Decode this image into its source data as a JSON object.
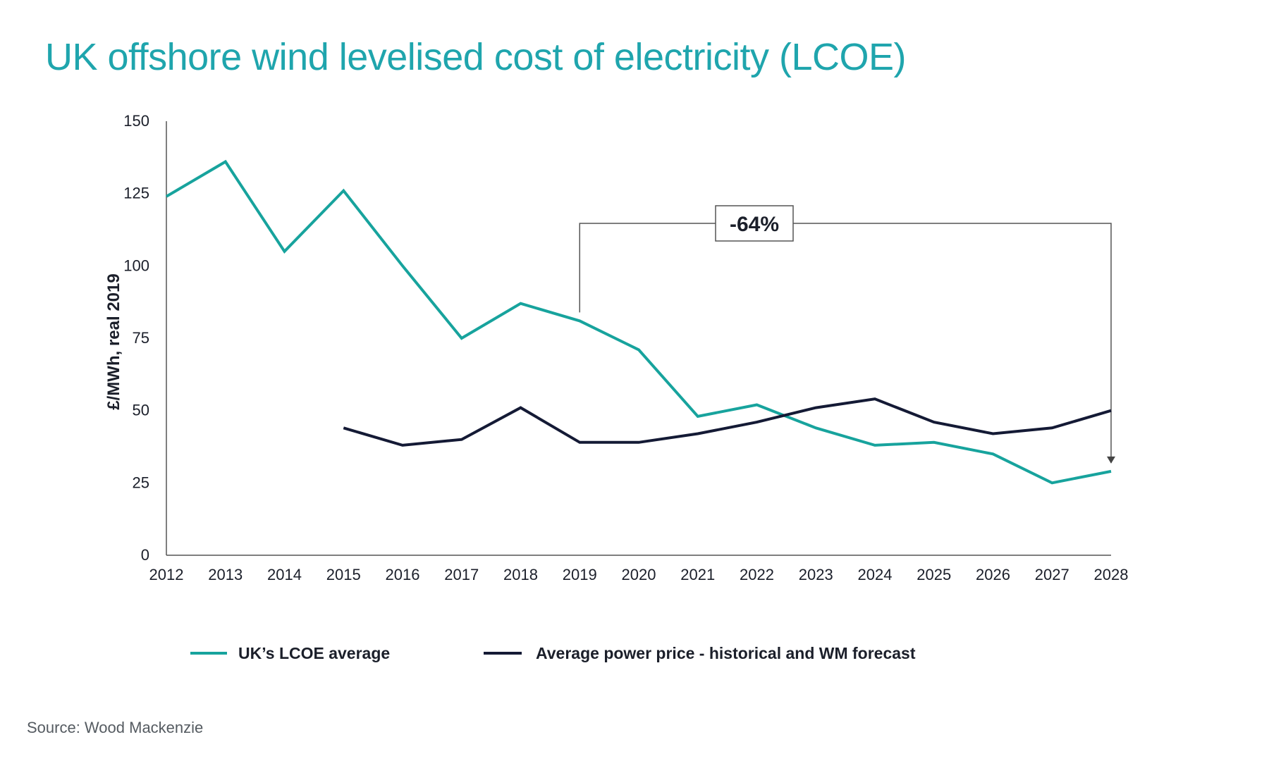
{
  "title": "UK offshore wind levelised cost of electricity (LCOE)",
  "source": "Source: Wood Mackenzie",
  "colors": {
    "title": "#1fa5ad",
    "lcoe": "#17a39d",
    "power": "#141a35",
    "axis": "#555555",
    "text": "#1b1f2a"
  },
  "chart_data": {
    "type": "line",
    "x": [
      "2012",
      "2013",
      "2014",
      "2015",
      "2016",
      "2017",
      "2018",
      "2019",
      "2020",
      "2021",
      "2022",
      "2023",
      "2024",
      "2025",
      "2026",
      "2027",
      "2028"
    ],
    "ylabel": "£/MWh, real 2019",
    "xlabel": "",
    "ylim": [
      0,
      150
    ],
    "yticks": [
      0,
      25,
      50,
      75,
      100,
      125,
      150
    ],
    "grid": false,
    "legend_position": "bottom",
    "series": [
      {
        "name": "UK’s LCOE average",
        "color": "#17a39d",
        "values": [
          124,
          136,
          105,
          126,
          100,
          75,
          87,
          81,
          71,
          48,
          52,
          44,
          38,
          39,
          35,
          25,
          29
        ]
      },
      {
        "name": "Average power price - historical and WM forecast",
        "color": "#141a35",
        "values": [
          null,
          null,
          null,
          44,
          38,
          40,
          51,
          39,
          39,
          42,
          46,
          51,
          54,
          46,
          42,
          44,
          50
        ]
      }
    ],
    "annotations": [
      {
        "text": "-64%",
        "from_x": "2019",
        "to_x": "2028"
      }
    ]
  }
}
